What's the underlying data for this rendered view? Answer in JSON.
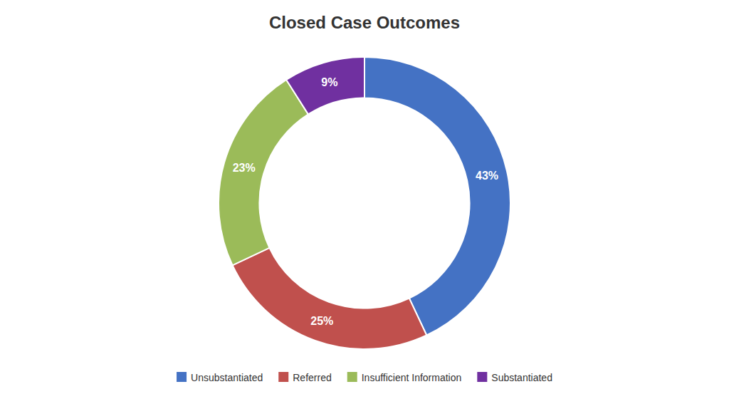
{
  "chart_data": {
    "type": "donut",
    "title": "Closed Case Outcomes",
    "categories": [
      "Unsubstantiated",
      "Referred",
      "Insufficient Information",
      "Substantiated"
    ],
    "values": [
      43,
      25,
      23,
      9
    ],
    "value_labels": [
      "43%",
      "25%",
      "23%",
      "9%"
    ],
    "colors": [
      "#4472C4",
      "#C0504D",
      "#9BBB59",
      "#7030A0"
    ],
    "data_labels": true,
    "legend": "bottom"
  }
}
